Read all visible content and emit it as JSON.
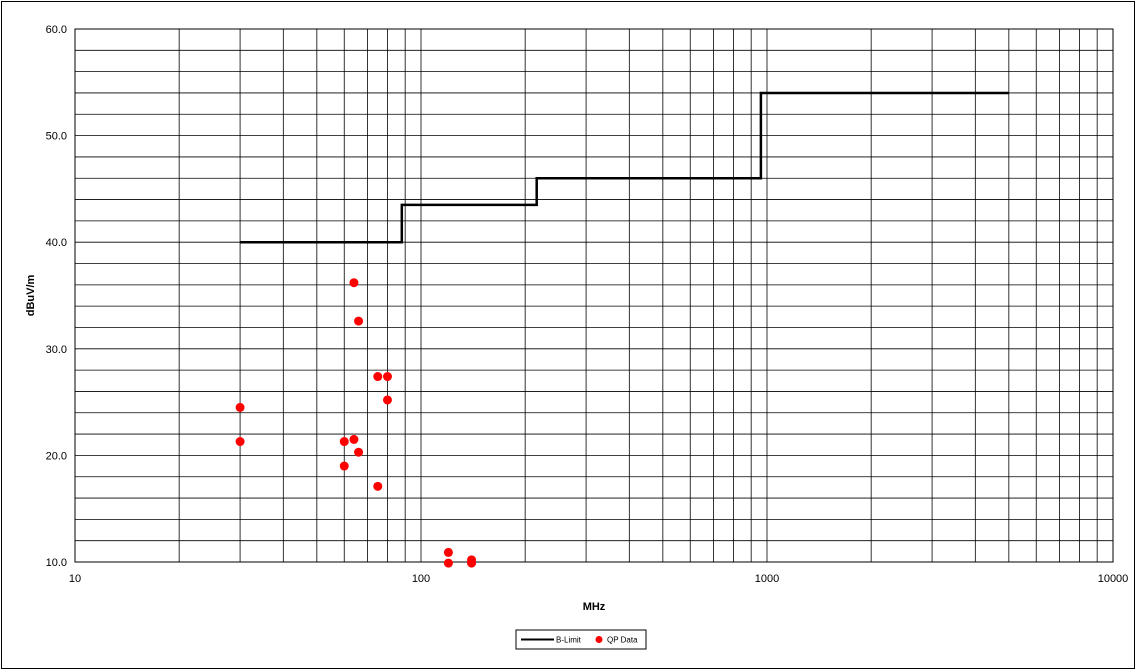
{
  "chart_data": {
    "type": "scatter",
    "title": "",
    "xlabel": "MHz",
    "ylabel": "dBuV/m",
    "xscale": "log",
    "xlim": [
      10,
      10000
    ],
    "ylim": [
      10,
      60
    ],
    "grid": true,
    "legend_position": "bottom-center",
    "x_tick_labels": [
      "10",
      "100",
      "1000",
      "10000"
    ],
    "y_tick_labels": [
      "10.0",
      "20.0",
      "30.0",
      "40.0",
      "50.0",
      "60.0"
    ],
    "series": [
      {
        "name": "B-Limit",
        "kind": "line",
        "color": "#000000",
        "points": [
          {
            "x": 30,
            "y": 40.0
          },
          {
            "x": 88,
            "y": 40.0
          },
          {
            "x": 88,
            "y": 43.5
          },
          {
            "x": 216,
            "y": 43.5
          },
          {
            "x": 216,
            "y": 46.0
          },
          {
            "x": 960,
            "y": 46.0
          },
          {
            "x": 960,
            "y": 54.0
          },
          {
            "x": 5000,
            "y": 54.0
          }
        ]
      },
      {
        "name": "QP Data",
        "kind": "scatter",
        "color": "#ff0000",
        "points": [
          {
            "x": 30,
            "y": 24.5
          },
          {
            "x": 30,
            "y": 21.3
          },
          {
            "x": 60,
            "y": 21.3
          },
          {
            "x": 60,
            "y": 19.0
          },
          {
            "x": 64,
            "y": 36.2
          },
          {
            "x": 64,
            "y": 21.5
          },
          {
            "x": 66,
            "y": 32.6
          },
          {
            "x": 66,
            "y": 20.3
          },
          {
            "x": 75,
            "y": 27.4
          },
          {
            "x": 75,
            "y": 17.1
          },
          {
            "x": 80,
            "y": 27.4
          },
          {
            "x": 80,
            "y": 25.2
          },
          {
            "x": 120,
            "y": 10.9
          },
          {
            "x": 120,
            "y": 9.9
          },
          {
            "x": 140,
            "y": 10.2
          },
          {
            "x": 140,
            "y": 9.9
          }
        ]
      }
    ]
  }
}
